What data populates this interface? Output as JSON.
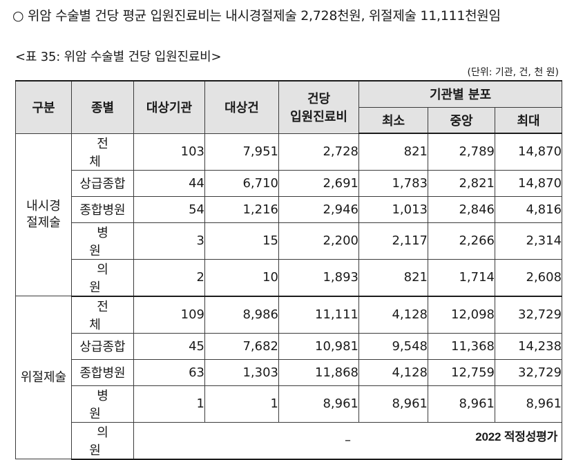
{
  "summary": "○ 위암 수술별 건당 평균 입원진료비는 내시경절제술 2,728천원, 위절제술 11,111천원임",
  "caption": "<표 35: 위암 수술별 건당 입원진료비>",
  "unit": "(단위: 기관, 건, 천 원)",
  "headers": {
    "group": "구분",
    "type": "종별",
    "institutions": "대상기관",
    "cases": "대상건",
    "cost_per_case_line1": "건당",
    "cost_per_case_line2": "입원진료비",
    "distribution": "기관별 분포",
    "min": "최소",
    "median": "중앙",
    "max": "최대"
  },
  "groups": [
    {
      "name_line1": "내시경",
      "name_line2": "절제술",
      "rows": [
        {
          "type": "전체",
          "institutions": "103",
          "cases": "7,951",
          "cost": "2,728",
          "min": "821",
          "median": "2,789",
          "max": "14,870"
        },
        {
          "type": "상급종합",
          "institutions": "44",
          "cases": "6,710",
          "cost": "2,691",
          "min": "1,783",
          "median": "2,821",
          "max": "14,870"
        },
        {
          "type": "종합병원",
          "institutions": "54",
          "cases": "1,216",
          "cost": "2,946",
          "min": "1,013",
          "median": "2,846",
          "max": "4,816"
        },
        {
          "type": "병원",
          "institutions": "3",
          "cases": "15",
          "cost": "2,200",
          "min": "2,117",
          "median": "2,266",
          "max": "2,314"
        },
        {
          "type": "의원",
          "institutions": "2",
          "cases": "10",
          "cost": "1,893",
          "min": "821",
          "median": "1,714",
          "max": "2,608"
        }
      ]
    },
    {
      "name": "위절제술",
      "rows": [
        {
          "type": "전체",
          "institutions": "109",
          "cases": "8,986",
          "cost": "11,111",
          "min": "4,128",
          "median": "12,098",
          "max": "32,729"
        },
        {
          "type": "상급종합",
          "institutions": "45",
          "cases": "7,682",
          "cost": "10,981",
          "min": "9,548",
          "median": "11,368",
          "max": "14,238"
        },
        {
          "type": "종합병원",
          "institutions": "63",
          "cases": "1,303",
          "cost": "11,868",
          "min": "4,128",
          "median": "12,759",
          "max": "32,729"
        },
        {
          "type": "병원",
          "institutions": "1",
          "cases": "1",
          "cost": "8,961",
          "min": "8,961",
          "median": "8,961",
          "max": "8,961"
        },
        {
          "type": "의원",
          "dash": "–"
        }
      ]
    }
  ],
  "watermark": "2022 적정성평가"
}
